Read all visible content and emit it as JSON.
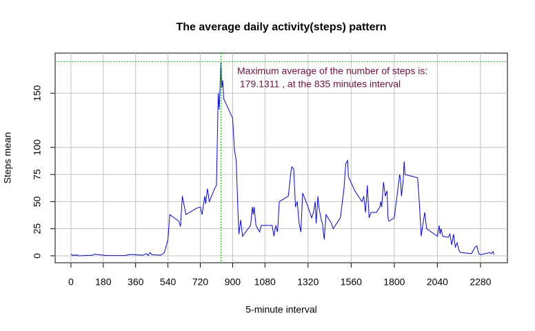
{
  "chart_data": {
    "type": "line",
    "title": "The average daily activity(steps) pattern",
    "x_label": "5-minute interval",
    "y_label": "Steps mean",
    "annotation": [
      "Maximum average of the number of steps is:",
      " 179.1311 , at the 835 minutes interval"
    ],
    "max_x": 835,
    "max_y": 179.1311,
    "max_line_color": "#00cc00",
    "x": [
      0,
      10,
      20,
      25,
      35,
      40,
      120,
      130,
      200,
      300,
      330,
      400,
      420,
      430,
      440,
      450,
      500,
      520,
      540,
      550,
      600,
      610,
      620,
      640,
      700,
      720,
      730,
      745,
      750,
      760,
      770,
      800,
      810,
      820,
      825,
      830,
      835,
      840,
      845,
      850,
      900,
      910,
      920,
      930,
      935,
      945,
      955,
      1000,
      1010,
      1015,
      1020,
      1030,
      1050,
      1060,
      1120,
      1130,
      1140,
      1150,
      1160,
      1210,
      1225,
      1230,
      1240,
      1250,
      1260,
      1270,
      1280,
      1290,
      1320,
      1340,
      1350,
      1360,
      1365,
      1375,
      1380,
      1395,
      1400,
      1410,
      1420,
      1450,
      1460,
      1500,
      1520,
      1530,
      1540,
      1545,
      1580,
      1620,
      1630,
      1640,
      1650,
      1660,
      1670,
      1700,
      1720,
      1725,
      1730,
      1740,
      1750,
      1760,
      1765,
      1770,
      1800,
      1830,
      1835,
      1840,
      1850,
      1855,
      1860,
      1930,
      1940,
      1950,
      1960,
      1970,
      1980,
      2040,
      2050,
      2055,
      2060,
      2070,
      2100,
      2110,
      2120,
      2130,
      2140,
      2150,
      2160,
      2170,
      2230,
      2250,
      2260,
      2270,
      2280,
      2330,
      2340,
      2350,
      2355
    ],
    "series": [
      {
        "name": "Steps mean",
        "color": "#0000ff",
        "values": [
          1.7,
          0.1,
          1,
          0.1,
          0.9,
          0,
          0.5,
          1.5,
          0.2,
          0.3,
          1.2,
          0.5,
          2,
          0.3,
          3,
          1,
          0.5,
          3,
          15,
          38,
          32,
          27,
          55,
          38,
          44,
          45,
          38,
          55,
          48,
          62,
          50,
          62,
          65,
          150,
          135,
          155,
          179.1311,
          155,
          162,
          145,
          127,
          98,
          88,
          40,
          20,
          33,
          18,
          28,
          45,
          38,
          45,
          28,
          22,
          28,
          28,
          18,
          28,
          22,
          50,
          55,
          78,
          82,
          80,
          45,
          50,
          30,
          22,
          58,
          45,
          35,
          40,
          50,
          30,
          55,
          45,
          32,
          30,
          15,
          38,
          30,
          25,
          35,
          62,
          85,
          88,
          73,
          60,
          50,
          55,
          40,
          65,
          35,
          40,
          40,
          45,
          50,
          45,
          68,
          55,
          60,
          35,
          32,
          35,
          75,
          70,
          55,
          70,
          87,
          75,
          72,
          48,
          18,
          30,
          40,
          25,
          18,
          28,
          20,
          25,
          18,
          17,
          20,
          10,
          20,
          8,
          12,
          5,
          3,
          2,
          8,
          9,
          2,
          1,
          3,
          2,
          4,
          1
        ]
      }
    ],
    "xlim": [
      -88,
      2430
    ],
    "ylim": [
      -6.4,
      187
    ],
    "xticks": [
      0,
      180,
      360,
      540,
      720,
      900,
      1080,
      1320,
      1560,
      1800,
      2040,
      2280
    ],
    "yticks": [
      0,
      25,
      50,
      75,
      100,
      150
    ],
    "grid": true
  }
}
